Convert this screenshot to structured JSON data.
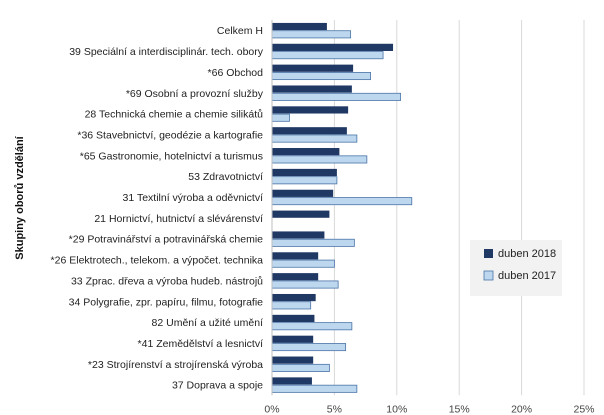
{
  "chart_data": {
    "type": "bar",
    "orientation": "horizontal",
    "ylabel": "Skupiny oborů vzdělání",
    "xlim": [
      0,
      25
    ],
    "x_ticks": [
      "0%",
      "5%",
      "10%",
      "15%",
      "20%",
      "25%"
    ],
    "grid": "vertical",
    "legend_position": "right",
    "categories": [
      "Celkem H",
      "39 Speciální a interdisciplinár. tech. obory",
      "*66 Obchod",
      "*69 Osobní a provozní služby",
      "28 Technická chemie a chemie silikátů",
      "*36 Stavebnictví, geodézie a kartografie",
      "*65 Gastronomie, hotelnictví a turismus",
      "53 Zdravotnictví",
      "31 Textilní výroba a oděvnictví",
      "21 Hornictví, hutnictví a slévárenství",
      "*29 Potravinářství a potravinářská chemie",
      "*26 Elektrotech., telekom. a výpočet. technika",
      "33 Zprac. dřeva a výroba hudeb. nástrojů",
      "34 Polygrafie, zpr. papíru, filmu, fotografie",
      "82 Umění a užité umění",
      "*41 Zemědělství a lesnictví",
      "*23 Strojírenství a strojírenská výroba",
      "37 Doprava a spoje"
    ],
    "series": [
      {
        "name": "duben 2018",
        "color": "#1f3864",
        "values": [
          4.4,
          9.7,
          6.5,
          6.4,
          6.1,
          6.0,
          5.4,
          5.2,
          4.9,
          4.6,
          4.2,
          3.7,
          3.7,
          3.5,
          3.4,
          3.3,
          3.3,
          3.2
        ]
      },
      {
        "name": "duben 2017",
        "color": "#bdd7ee",
        "values": [
          6.3,
          8.9,
          7.9,
          10.3,
          1.4,
          6.8,
          7.6,
          5.2,
          11.2,
          null,
          6.6,
          5.0,
          5.3,
          3.1,
          6.4,
          5.9,
          4.6,
          6.8
        ]
      }
    ]
  }
}
